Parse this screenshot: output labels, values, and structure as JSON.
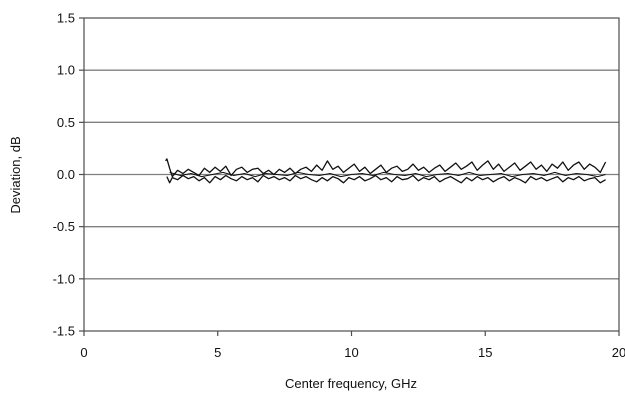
{
  "chart_data": {
    "type": "line",
    "title": "",
    "xlabel": "Center frequency, GHz",
    "ylabel": "Deviation, dB",
    "xlim": [
      0,
      20
    ],
    "ylim": [
      -1.5,
      1.5
    ],
    "grid": "horizontal",
    "x_ticks": [
      0,
      5,
      10,
      15,
      20
    ],
    "y_ticks": [
      1.5,
      1.0,
      0.5,
      0.0,
      -0.5,
      -1.0,
      -1.5
    ],
    "x_tick_labels": [
      "0",
      "5",
      "10",
      "15",
      "20"
    ],
    "y_tick_labels": [
      "1.5",
      "1.0",
      "0.5",
      "0.0",
      "-0.5",
      "-1.0",
      "-1.5"
    ],
    "colors": {
      "line": "#111111",
      "grid": "#808080",
      "frame": "#4d4d4d"
    },
    "series": [
      {
        "x": [
          3.05,
          3.1,
          3.2,
          3.3,
          3.5,
          3.7,
          3.9,
          4.1,
          4.3,
          4.5,
          4.7,
          4.9,
          5.1,
          5.3,
          5.5,
          5.7,
          5.9,
          6.1,
          6.3,
          6.5,
          6.7,
          6.9,
          7.1,
          7.3,
          7.5,
          7.7,
          7.9,
          8.1,
          8.3,
          8.5,
          8.7,
          8.9,
          9.1,
          9.3,
          9.5,
          9.7,
          9.9,
          10.1,
          10.3,
          10.5,
          10.7,
          10.9,
          11.1,
          11.3,
          11.5,
          11.7,
          11.9,
          12.1,
          12.3,
          12.5,
          12.7,
          12.9,
          13.1,
          13.3,
          13.5,
          13.7,
          13.9,
          14.1,
          14.3,
          14.5,
          14.7,
          14.9,
          15.1,
          15.3,
          15.5,
          15.7,
          15.9,
          16.1,
          16.3,
          16.5,
          16.7,
          16.9,
          17.1,
          17.3,
          17.5,
          17.7,
          17.9,
          18.1,
          18.3,
          18.5,
          18.7,
          18.9,
          19.1,
          19.3,
          19.5
        ],
        "values": [
          0.13,
          0.15,
          0.06,
          -0.02,
          0.04,
          0.01,
          0.05,
          0.02,
          -0.01,
          0.06,
          0.02,
          0.07,
          0.03,
          0.08,
          -0.01,
          0.05,
          0.07,
          0.02,
          0.05,
          0.06,
          0.01,
          0.04,
          0.0,
          0.05,
          0.02,
          0.06,
          0.01,
          0.05,
          0.07,
          0.03,
          0.09,
          0.04,
          0.13,
          0.05,
          0.08,
          0.02,
          0.06,
          0.1,
          0.03,
          0.07,
          0.01,
          0.05,
          0.09,
          0.02,
          0.06,
          0.08,
          0.03,
          0.05,
          0.1,
          0.04,
          0.07,
          0.02,
          0.06,
          0.09,
          0.03,
          0.07,
          0.11,
          0.05,
          0.08,
          0.12,
          0.04,
          0.09,
          0.13,
          0.05,
          0.1,
          0.03,
          0.07,
          0.11,
          0.04,
          0.08,
          0.12,
          0.05,
          0.09,
          0.03,
          0.1,
          0.06,
          0.12,
          0.04,
          0.09,
          0.12,
          0.05,
          0.1,
          0.07,
          0.02,
          0.12
        ]
      },
      {
        "x": [
          3.1,
          3.2,
          3.3,
          3.5,
          3.7,
          3.9,
          4.1,
          4.3,
          4.5,
          4.7,
          4.9,
          5.1,
          5.3,
          5.5,
          5.7,
          5.9,
          6.1,
          6.3,
          6.5,
          6.7,
          6.9,
          7.1,
          7.3,
          7.5,
          7.7,
          7.9,
          8.1,
          8.3,
          8.5,
          8.7,
          8.9,
          9.1,
          9.3,
          9.5,
          9.7,
          9.9,
          10.1,
          10.3,
          10.5,
          10.7,
          10.9,
          11.1,
          11.3,
          11.5,
          11.7,
          11.9,
          12.1,
          12.3,
          12.5,
          12.7,
          12.9,
          13.1,
          13.3,
          13.5,
          13.7,
          13.9,
          14.1,
          14.3,
          14.5,
          14.7,
          14.9,
          15.1,
          15.3,
          15.5,
          15.7,
          15.9,
          16.1,
          16.3,
          16.5,
          16.7,
          16.9,
          17.1,
          17.3,
          17.5,
          17.7,
          17.9,
          18.1,
          18.3,
          18.5,
          18.7,
          18.9,
          19.1,
          19.3,
          19.5
        ],
        "values": [
          -0.02,
          -0.08,
          -0.03,
          -0.05,
          -0.01,
          -0.04,
          -0.02,
          -0.06,
          -0.03,
          -0.08,
          -0.02,
          -0.05,
          -0.01,
          -0.04,
          -0.06,
          -0.02,
          -0.05,
          -0.03,
          -0.07,
          -0.01,
          -0.04,
          -0.02,
          -0.05,
          -0.03,
          -0.06,
          -0.01,
          -0.04,
          -0.02,
          -0.05,
          -0.07,
          -0.03,
          -0.06,
          -0.02,
          -0.04,
          -0.08,
          -0.03,
          -0.05,
          -0.02,
          -0.06,
          -0.04,
          -0.01,
          -0.05,
          -0.03,
          -0.07,
          -0.02,
          -0.05,
          -0.04,
          -0.01,
          -0.06,
          -0.03,
          -0.05,
          -0.02,
          -0.07,
          -0.04,
          -0.02,
          -0.05,
          -0.08,
          -0.03,
          -0.06,
          -0.02,
          -0.05,
          -0.03,
          -0.07,
          -0.04,
          -0.02,
          -0.06,
          -0.03,
          -0.05,
          -0.08,
          -0.02,
          -0.05,
          -0.03,
          -0.06,
          -0.04,
          -0.02,
          -0.07,
          -0.03,
          -0.05,
          -0.02,
          -0.06,
          -0.04,
          -0.03,
          -0.08,
          -0.05
        ]
      },
      {
        "x": [
          3.2,
          3.6,
          4.0,
          4.4,
          4.8,
          5.2,
          5.6,
          6.0,
          6.4,
          6.8,
          7.2,
          7.6,
          8.0,
          8.4,
          8.8,
          9.2,
          9.6,
          10.0,
          10.4,
          10.8,
          11.2,
          11.6,
          12.0,
          12.4,
          12.8,
          13.2,
          13.6,
          14.0,
          14.4,
          14.8,
          15.2,
          15.6,
          16.0,
          16.4,
          16.8,
          17.2,
          17.6,
          18.0,
          18.4,
          18.8,
          19.2,
          19.5
        ],
        "values": [
          0.02,
          -0.01,
          0.01,
          -0.02,
          0.0,
          0.02,
          -0.01,
          0.01,
          -0.02,
          0.01,
          0.0,
          -0.01,
          0.02,
          0.0,
          -0.01,
          0.01,
          -0.02,
          0.0,
          0.01,
          -0.01,
          0.02,
          0.0,
          -0.01,
          0.01,
          -0.02,
          0.0,
          0.01,
          -0.01,
          0.02,
          -0.01,
          0.0,
          0.01,
          -0.02,
          0.0,
          0.01,
          -0.01,
          0.02,
          -0.01,
          0.01,
          0.0,
          -0.02,
          0.0
        ]
      }
    ]
  }
}
